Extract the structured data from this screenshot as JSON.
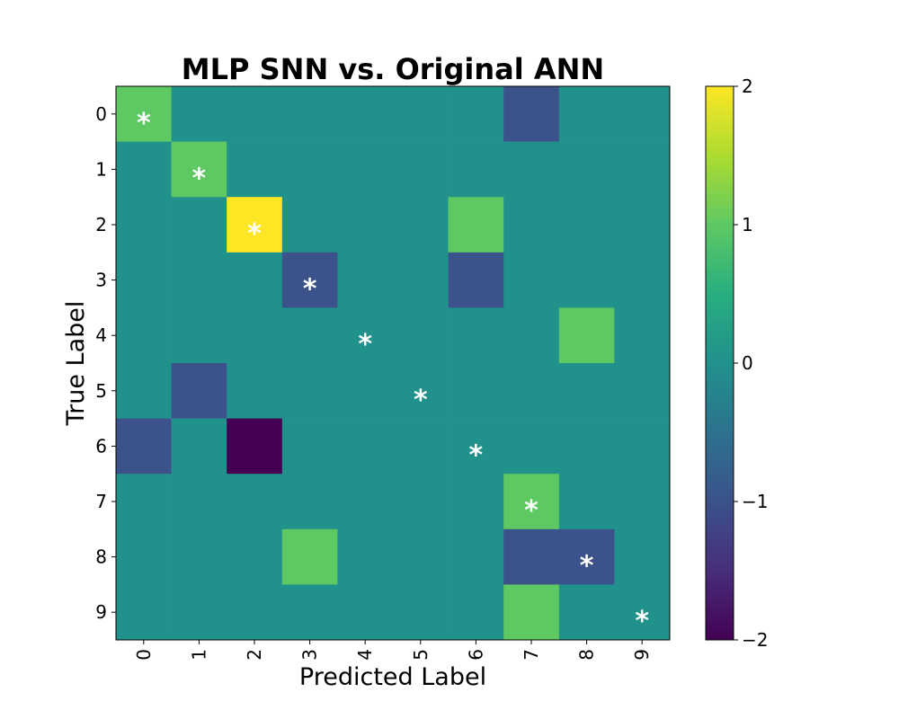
{
  "chart_data": {
    "type": "heatmap",
    "title": "MLP SNN vs. Original ANN",
    "xlabel": "Predicted Label",
    "ylabel": "True Label",
    "x_categories": [
      "0",
      "1",
      "2",
      "3",
      "4",
      "5",
      "6",
      "7",
      "8",
      "9"
    ],
    "y_categories": [
      "0",
      "1",
      "2",
      "3",
      "4",
      "5",
      "6",
      "7",
      "8",
      "9"
    ],
    "matrix": [
      [
        1,
        0,
        0,
        0,
        0,
        0,
        0,
        -1,
        0,
        0
      ],
      [
        0,
        1,
        0,
        0,
        0,
        0,
        0,
        0,
        0,
        0
      ],
      [
        0,
        0,
        2,
        0,
        0,
        0,
        1,
        0,
        0,
        0
      ],
      [
        0,
        0,
        0,
        -1,
        0,
        0,
        -1,
        0,
        0,
        0
      ],
      [
        0,
        0,
        0,
        0,
        0,
        0,
        0,
        0,
        1,
        0
      ],
      [
        0,
        -1,
        0,
        0,
        0,
        0,
        0,
        0,
        0,
        0
      ],
      [
        -1,
        0,
        -2,
        0,
        0,
        0,
        0,
        0,
        0,
        0
      ],
      [
        0,
        0,
        0,
        0,
        0,
        0,
        0,
        1,
        0,
        0
      ],
      [
        0,
        0,
        0,
        1,
        0,
        0,
        0,
        -1,
        -1,
        0
      ],
      [
        0,
        0,
        0,
        0,
        0,
        0,
        0,
        1,
        0,
        0
      ]
    ],
    "diagonal_marker": "*",
    "colormap": "viridis",
    "colorbar": {
      "range": [
        -2,
        2
      ],
      "ticks": [
        2,
        1,
        0,
        -1,
        -2
      ],
      "tick_labels": [
        "2",
        "1",
        "0",
        "−1",
        "−2"
      ]
    },
    "colors": {
      "-2": "#440154",
      "-1": "#3b528b",
      "0": "#21918c",
      "1": "#5ec962",
      "2": "#fde725"
    }
  }
}
